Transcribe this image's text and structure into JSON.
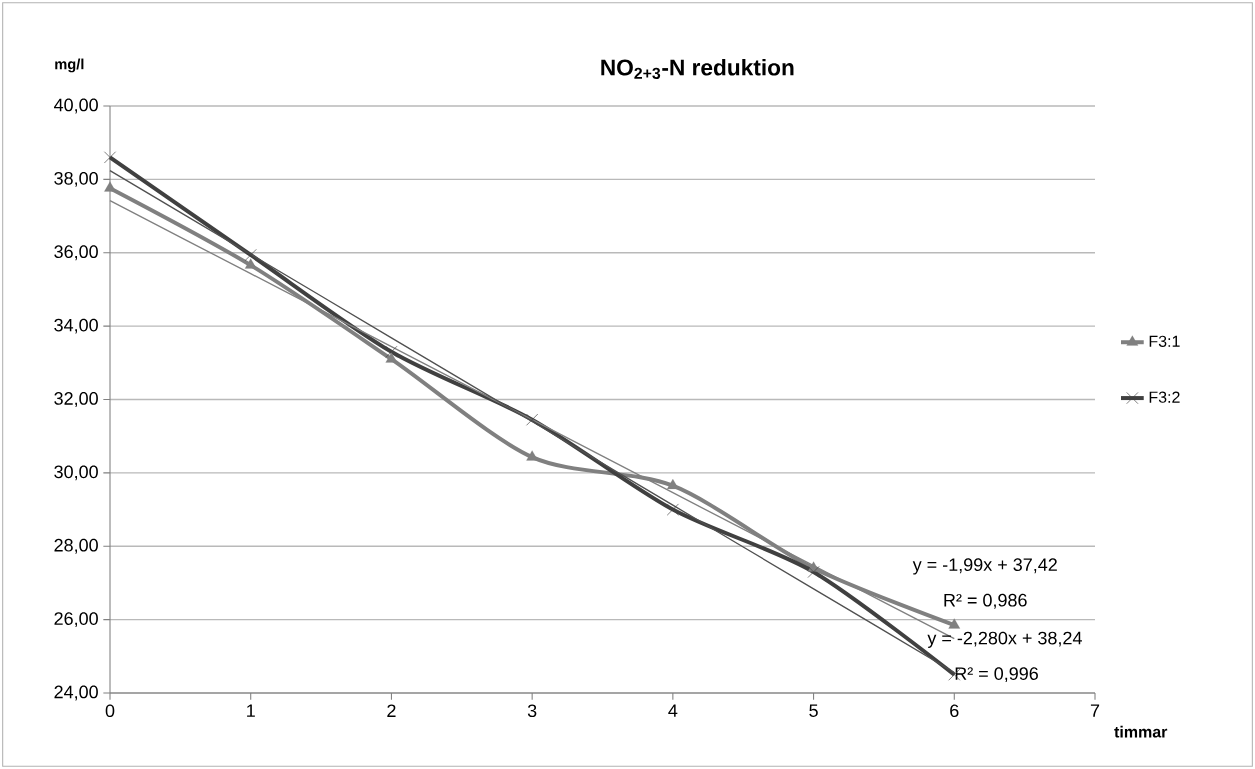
{
  "chart_data": {
    "type": "line",
    "title": "NO$_{2+3}$-N reduktion",
    "xlabel": "timmar",
    "ylabel": "mg/l",
    "x": [
      0,
      1,
      2,
      3,
      4,
      5,
      6
    ],
    "series": [
      {
        "name": "F3:1",
        "color": "#808080",
        "marker": "triangle",
        "values": [
          37.76,
          35.66,
          33.1,
          30.43,
          29.65,
          27.4,
          25.85
        ]
      },
      {
        "name": "F3:2",
        "color": "#404040",
        "marker": "cross",
        "values": [
          38.6,
          35.94,
          33.3,
          31.45,
          29.0,
          27.3,
          24.5
        ]
      },
      {
        "color": "#808080",
        "values": [
          37.42,
          35.43,
          33.44,
          31.45,
          29.46,
          27.47,
          25.48
        ]
      },
      {
        "color": "#505050",
        "values": [
          38.24,
          35.96,
          33.68,
          31.4,
          29.12,
          26.84,
          24.56
        ]
      }
    ],
    "annotations": [
      "y = -1,99x + 37,42",
      "R² = 0,986",
      "y = -2,280x + 38,24",
      "R² = 0,996"
    ],
    "xlim": [
      0,
      7
    ],
    "xticks": [
      0,
      1,
      2,
      3,
      4,
      5,
      6,
      7
    ],
    "ylim": [
      24,
      40
    ],
    "yticks": [
      {
        "value": 24,
        "label": "24,00"
      },
      {
        "value": 26,
        "label": "26,00"
      },
      {
        "value": 28,
        "label": "28,00"
      },
      {
        "value": 30,
        "label": "30,00"
      },
      {
        "value": 32,
        "label": "32,00"
      },
      {
        "value": 34,
        "label": "34,00"
      },
      {
        "value": 36,
        "label": "36,00"
      },
      {
        "value": 38,
        "label": "38,00"
      },
      {
        "value": 40,
        "label": "40,00"
      }
    ],
    "grid": "y",
    "legend": "right"
  }
}
